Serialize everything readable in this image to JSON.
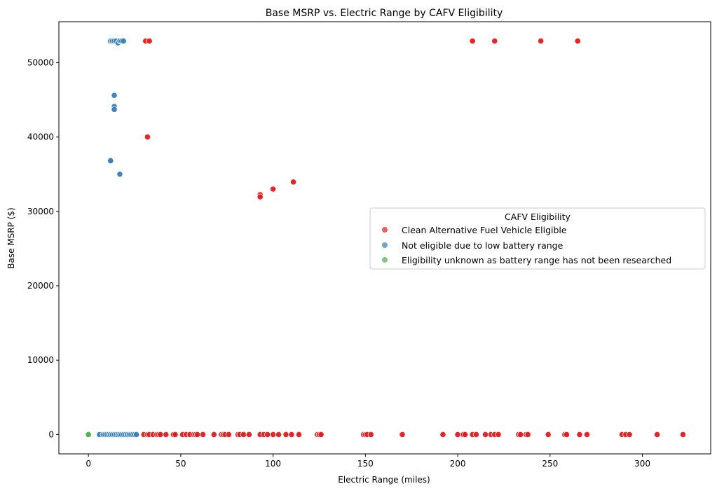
{
  "chart_data": {
    "type": "scatter",
    "title": "Base MSRP vs. Electric Range by CAFV Eligibility",
    "xlabel": "Electric Range (miles)",
    "ylabel": "Base MSRP ($)",
    "xlim": [
      -16,
      337
    ],
    "ylim": [
      -2600,
      55500
    ],
    "xticks": [
      0,
      50,
      100,
      150,
      200,
      250,
      300
    ],
    "yticks": [
      0,
      10000,
      20000,
      30000,
      40000,
      50000
    ],
    "grid": false,
    "legend": {
      "title": "CAFV Eligibility",
      "placement": "center-right"
    },
    "series": [
      {
        "name": "Clean Alternative Fuel Vehicle Eligible",
        "color": "#e41a1c",
        "points": [
          [
            31,
            52900
          ],
          [
            33,
            52900
          ],
          [
            208,
            52900
          ],
          [
            220,
            52900
          ],
          [
            245,
            52900
          ],
          [
            265,
            52900
          ],
          [
            32,
            40000
          ],
          [
            111,
            33950
          ],
          [
            100,
            32995
          ],
          [
            93,
            32250
          ],
          [
            93,
            31950
          ],
          [
            30,
            0
          ],
          [
            32,
            0
          ],
          [
            33,
            0
          ],
          [
            35,
            0
          ],
          [
            37,
            0
          ],
          [
            38,
            0
          ],
          [
            39,
            0
          ],
          [
            42,
            0
          ],
          [
            46,
            0
          ],
          [
            47,
            0
          ],
          [
            51,
            0
          ],
          [
            53,
            0
          ],
          [
            55,
            0
          ],
          [
            57,
            0
          ],
          [
            58,
            0
          ],
          [
            59,
            0
          ],
          [
            62,
            0
          ],
          [
            68,
            0
          ],
          [
            72,
            0
          ],
          [
            73,
            0
          ],
          [
            74,
            0
          ],
          [
            76,
            0
          ],
          [
            81,
            0
          ],
          [
            82,
            0
          ],
          [
            84,
            0
          ],
          [
            87,
            0
          ],
          [
            93,
            0
          ],
          [
            95,
            0
          ],
          [
            97,
            0
          ],
          [
            100,
            0
          ],
          [
            103,
            0
          ],
          [
            107,
            0
          ],
          [
            110,
            0
          ],
          [
            114,
            0
          ],
          [
            124,
            0
          ],
          [
            125,
            0
          ],
          [
            126,
            0
          ],
          [
            149,
            0
          ],
          [
            150,
            0
          ],
          [
            151,
            0
          ],
          [
            153,
            0
          ],
          [
            170,
            0
          ],
          [
            192,
            0
          ],
          [
            200,
            0
          ],
          [
            203,
            0
          ],
          [
            204,
            0
          ],
          [
            208,
            0
          ],
          [
            210,
            0
          ],
          [
            215,
            0
          ],
          [
            218,
            0
          ],
          [
            220,
            0
          ],
          [
            222,
            0
          ],
          [
            233,
            0
          ],
          [
            234,
            0
          ],
          [
            237,
            0
          ],
          [
            238,
            0
          ],
          [
            249,
            0
          ],
          [
            258,
            0
          ],
          [
            259,
            0
          ],
          [
            266,
            0
          ],
          [
            270,
            0
          ],
          [
            289,
            0
          ],
          [
            291,
            0
          ],
          [
            293,
            0
          ],
          [
            308,
            0
          ],
          [
            322,
            0
          ]
        ]
      },
      {
        "name": "Not eligible due to low battery range",
        "color": "#377eb8",
        "points": [
          [
            12,
            52900
          ],
          [
            13,
            52900
          ],
          [
            14,
            52900
          ],
          [
            15,
            52900
          ],
          [
            16,
            52650
          ],
          [
            17,
            52900
          ],
          [
            18,
            52900
          ],
          [
            19,
            52900
          ],
          [
            14,
            45600
          ],
          [
            14,
            44100
          ],
          [
            14,
            43700
          ],
          [
            12,
            36900
          ],
          [
            12,
            36800
          ],
          [
            17,
            35000
          ],
          [
            6,
            0
          ],
          [
            8,
            0
          ],
          [
            9,
            0
          ],
          [
            10,
            0
          ],
          [
            11,
            0
          ],
          [
            12,
            0
          ],
          [
            13,
            0
          ],
          [
            14,
            0
          ],
          [
            15,
            0
          ],
          [
            16,
            0
          ],
          [
            17,
            0
          ],
          [
            18,
            0
          ],
          [
            19,
            0
          ],
          [
            20,
            0
          ],
          [
            21,
            0
          ],
          [
            22,
            0
          ],
          [
            23,
            0
          ],
          [
            24,
            0
          ],
          [
            25,
            0
          ],
          [
            26,
            0
          ]
        ]
      },
      {
        "name": "Eligibility unknown as battery range has not been researched",
        "color": "#4daf4a",
        "points": [
          [
            0,
            0
          ]
        ]
      }
    ]
  }
}
